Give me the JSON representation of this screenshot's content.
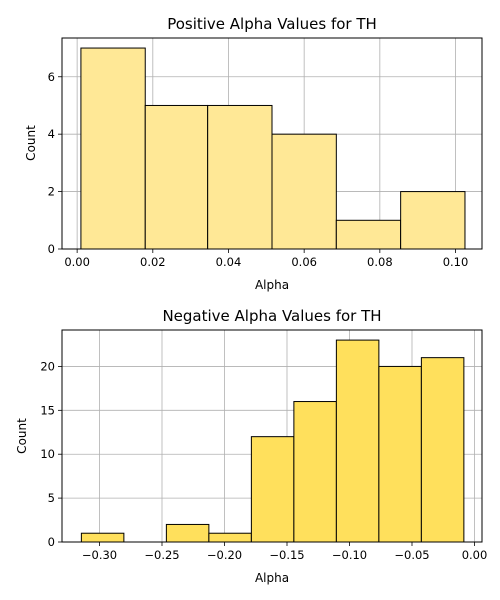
{
  "chart_data": [
    {
      "type": "bar",
      "title": "Positive Alpha Values for TH",
      "xlabel": "Alpha",
      "ylabel": "Count",
      "bin_edges": [
        0.001,
        0.018,
        0.0345,
        0.0515,
        0.0685,
        0.0855,
        0.1025
      ],
      "values": [
        7,
        5,
        5,
        4,
        1,
        2
      ],
      "xlim": [
        -0.004,
        0.107
      ],
      "ylim": [
        0,
        7.35
      ],
      "xticks": [
        0.0,
        0.02,
        0.04,
        0.06,
        0.08,
        0.1
      ],
      "xtick_labels": [
        "0.00",
        "0.02",
        "0.04",
        "0.06",
        "0.08",
        "0.10"
      ],
      "yticks": [
        0,
        2,
        4,
        6
      ],
      "ytick_labels": [
        "0",
        "2",
        "4",
        "6"
      ],
      "grid": true,
      "bar_color": "#FFE896",
      "edge_color": "#000000",
      "grid_color": "#b0b0b0"
    },
    {
      "type": "bar",
      "title": "Negative Alpha Values for TH",
      "xlabel": "Alpha",
      "ylabel": "Count",
      "bin_edges": [
        -0.3145,
        -0.2805,
        -0.2465,
        -0.2125,
        -0.1785,
        -0.1445,
        -0.1105,
        -0.0765,
        -0.0425,
        -0.0085
      ],
      "values": [
        1,
        0,
        2,
        1,
        12,
        16,
        23,
        20,
        21
      ],
      "xlim": [
        -0.33,
        0.006
      ],
      "ylim": [
        0,
        24.15
      ],
      "xticks": [
        -0.3,
        -0.25,
        -0.2,
        -0.15,
        -0.1,
        -0.05,
        0.0
      ],
      "xtick_labels": [
        "−0.30",
        "−0.25",
        "−0.20",
        "−0.15",
        "−0.10",
        "−0.05",
        "0.00"
      ],
      "yticks": [
        0,
        5,
        10,
        15,
        20
      ],
      "ytick_labels": [
        "0",
        "5",
        "10",
        "15",
        "20"
      ],
      "grid": true,
      "bar_color": "#FFE05C",
      "edge_color": "#000000",
      "grid_color": "#b0b0b0"
    }
  ]
}
